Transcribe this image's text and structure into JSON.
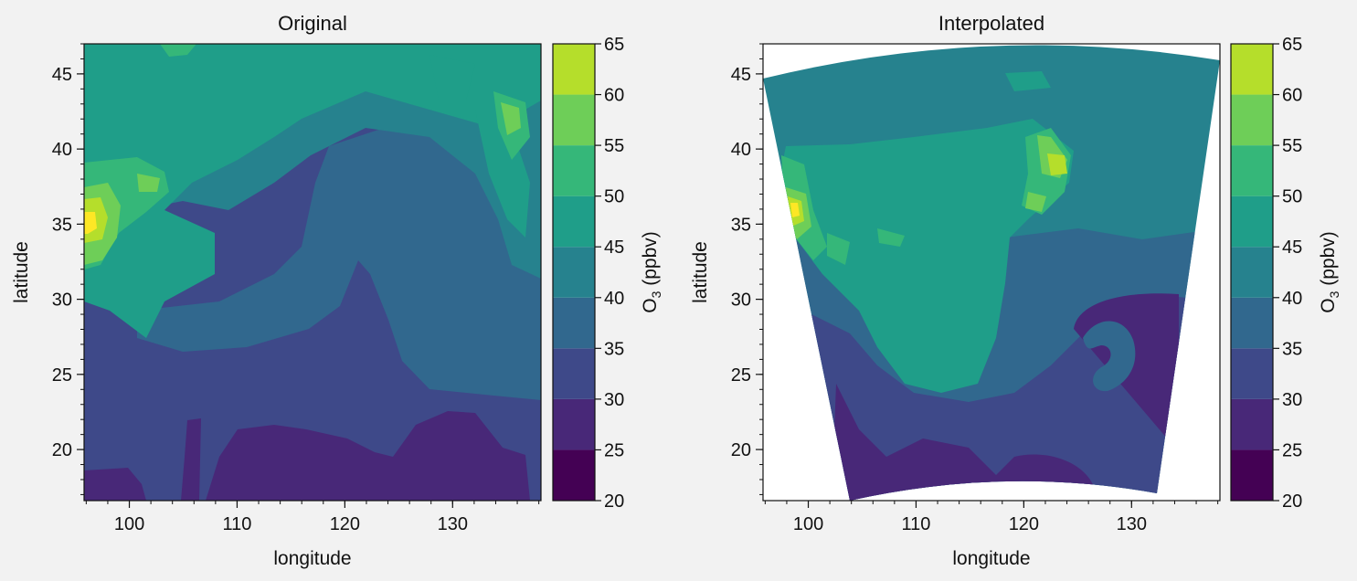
{
  "figure": {
    "background": "#f2f2f2",
    "colormap": "viridis",
    "colorbar_colors": [
      "#440154",
      "#482878",
      "#3e4989",
      "#31688e",
      "#26828e",
      "#1f9e89",
      "#35b779",
      "#6ece58",
      "#b5de2b",
      "#fde725"
    ]
  },
  "chart_data": [
    {
      "type": "heatmap",
      "title": "Original",
      "xlabel": "longitude",
      "ylabel": "latitude",
      "xlim": [
        95.8,
        138.2
      ],
      "ylim": [
        16.6,
        47.0
      ],
      "xticks": [
        100,
        110,
        120,
        130
      ],
      "xtick_labels": [
        "100",
        "110",
        "120",
        "130"
      ],
      "yticks": [
        20,
        25,
        30,
        35,
        40,
        45
      ],
      "ytick_labels": [
        "20",
        "25",
        "30",
        "35",
        "40",
        "45"
      ],
      "grid": false,
      "domain": "rectangular",
      "colorbar": {
        "label": "O3 (ppbv)",
        "label_base": "O",
        "label_sub": "3",
        "label_rest": " (ppbv)",
        "levels": [
          20,
          25,
          30,
          35,
          40,
          45,
          50,
          55,
          60,
          65
        ],
        "level_labels": [
          "20",
          "25",
          "30",
          "35",
          "40",
          "45",
          "50",
          "55",
          "60",
          "65"
        ]
      }
    },
    {
      "type": "heatmap",
      "title": "Interpolated",
      "xlabel": "longitude",
      "ylabel": "latitude",
      "xlim": [
        95.8,
        138.2
      ],
      "ylim": [
        16.6,
        47.0
      ],
      "xticks": [
        100,
        110,
        120,
        130
      ],
      "xtick_labels": [
        "100",
        "110",
        "120",
        "130"
      ],
      "yticks": [
        20,
        25,
        30,
        35,
        40,
        45
      ],
      "ytick_labels": [
        "20",
        "25",
        "30",
        "35",
        "40",
        "45"
      ],
      "grid": false,
      "domain": "projected-fan",
      "colorbar": {
        "label": "O3 (ppbv)",
        "label_base": "O",
        "label_sub": "3",
        "label_rest": " (ppbv)",
        "levels": [
          20,
          25,
          30,
          35,
          40,
          45,
          50,
          55,
          60,
          65
        ],
        "level_labels": [
          "20",
          "25",
          "30",
          "35",
          "40",
          "45",
          "50",
          "55",
          "60",
          "65"
        ]
      }
    }
  ]
}
